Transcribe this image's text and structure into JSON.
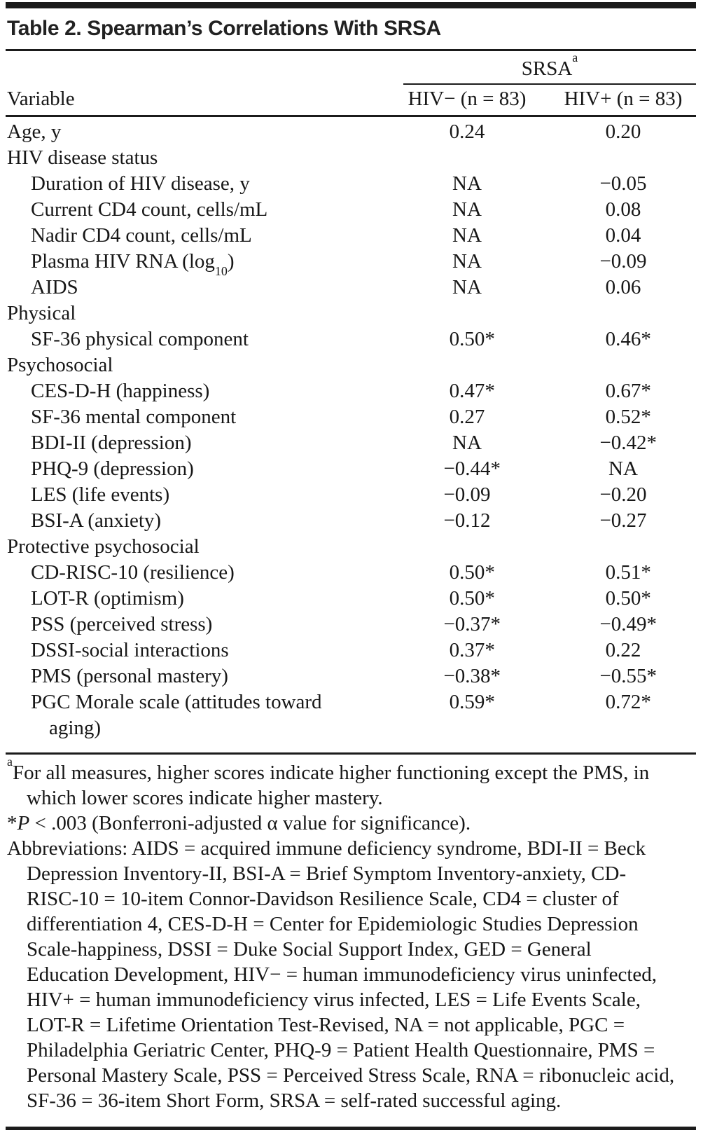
{
  "title": "Table 2. Spearman’s Correlations With SRSA",
  "table": {
    "span_header": {
      "text": "SRSA",
      "marker": "a"
    },
    "columns": [
      "Variable",
      "HIV− (n = 83)",
      "HIV+ (n = 83)"
    ],
    "rows": [
      {
        "label": "Age, y",
        "indent": 0,
        "section": false,
        "values": [
          "0.24",
          "0.20"
        ]
      },
      {
        "label": "HIV disease status",
        "indent": 0,
        "section": true,
        "values": [
          "",
          ""
        ]
      },
      {
        "label": "Duration of HIV disease, y",
        "indent": 1,
        "section": false,
        "values": [
          "NA",
          "−0.05"
        ]
      },
      {
        "label": "Current CD4 count, cells/mL",
        "indent": 1,
        "section": false,
        "values": [
          "NA",
          "0.08"
        ]
      },
      {
        "label": "Nadir CD4 count, cells/mL",
        "indent": 1,
        "section": false,
        "values": [
          "NA",
          "0.04"
        ]
      },
      {
        "label": "Plasma HIV RNA (log",
        "sub": "10",
        "after": ")",
        "indent": 1,
        "section": false,
        "values": [
          "NA",
          "−0.09"
        ]
      },
      {
        "label": "AIDS",
        "indent": 1,
        "section": false,
        "values": [
          "NA",
          "0.06"
        ]
      },
      {
        "label": "Physical",
        "indent": 0,
        "section": true,
        "values": [
          "",
          ""
        ]
      },
      {
        "label": "SF-36 physical component",
        "indent": 1,
        "section": false,
        "values": [
          "0.50*",
          "0.46*"
        ]
      },
      {
        "label": "Psychosocial",
        "indent": 0,
        "section": true,
        "values": [
          "",
          ""
        ]
      },
      {
        "label": "CES-D-H (happiness)",
        "indent": 1,
        "section": false,
        "values": [
          "0.47*",
          "0.67*"
        ]
      },
      {
        "label": "SF-36 mental component",
        "indent": 1,
        "section": false,
        "values": [
          "0.27",
          "0.52*"
        ]
      },
      {
        "label": "BDI-II (depression)",
        "indent": 1,
        "section": false,
        "values": [
          "NA",
          "−0.42*"
        ]
      },
      {
        "label": "PHQ-9 (depression)",
        "indent": 1,
        "section": false,
        "values": [
          "−0.44*",
          "NA"
        ]
      },
      {
        "label": "LES (life events)",
        "indent": 1,
        "section": false,
        "values": [
          "−0.09",
          "−0.20"
        ]
      },
      {
        "label": "BSI-A (anxiety)",
        "indent": 1,
        "section": false,
        "values": [
          "−0.12",
          "−0.27"
        ]
      },
      {
        "label": "Protective psychosocial",
        "indent": 0,
        "section": true,
        "values": [
          "",
          ""
        ]
      },
      {
        "label": "CD-RISC-10 (resilience)",
        "indent": 1,
        "section": false,
        "values": [
          "0.50*",
          "0.51*"
        ]
      },
      {
        "label": "LOT-R (optimism)",
        "indent": 1,
        "section": false,
        "values": [
          "0.50*",
          "0.50*"
        ]
      },
      {
        "label": "PSS (perceived stress)",
        "indent": 1,
        "section": false,
        "values": [
          "−0.37*",
          "−0.49*"
        ]
      },
      {
        "label": "DSSI-social interactions",
        "indent": 1,
        "section": false,
        "values": [
          "0.37*",
          "0.22"
        ]
      },
      {
        "label": "PMS (personal mastery)",
        "indent": 1,
        "section": false,
        "values": [
          "−0.38*",
          "−0.55*"
        ]
      },
      {
        "label": "PGC Morale scale (attitudes toward aging)",
        "indent": 1,
        "section": false,
        "values": [
          "0.59*",
          "0.72*"
        ]
      }
    ]
  },
  "footnotes": {
    "a_marker": "a",
    "a_text": "For all measures, higher scores indicate higher functioning except the PMS, in which lower scores indicate higher mastery.",
    "sig_marker": "*",
    "sig_italic": "P",
    "sig_text": " < .003 (Bonferroni-adjusted α value for significance).",
    "abbreviations": "Abbreviations: AIDS = acquired immune deficiency syndrome, BDI-II = Beck Depression Inventory-II, BSI-A = Brief Symptom Inventory-anxiety, CD-RISC-10 = 10-item Connor-Davidson Resilience Scale, CD4 = cluster of differentiation 4, CES-D-H = Center for Epidemiologic Studies Depression Scale-happiness, DSSI = Duke Social Support Index, GED = General Education Development, HIV− = human immunodeficiency virus uninfected, HIV+ = human immunodeficiency virus infected, LES = Life Events Scale, LOT-R = Lifetime Orientation Test-Revised, NA = not applicable, PGC = Philadelphia Geriatric Center, PHQ-9 = Patient Health Questionnaire, PMS = Personal Mastery Scale, PSS = Perceived Stress Scale, RNA = ribonucleic acid, SF-36 = 36-item Short Form, SRSA = self-rated successful aging."
  }
}
